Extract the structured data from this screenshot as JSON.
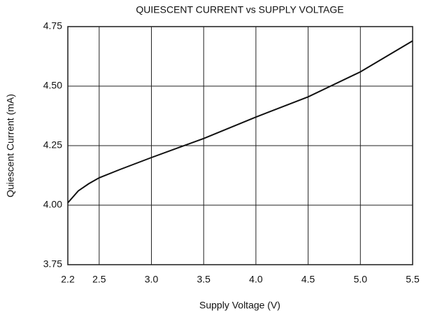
{
  "chart_data": {
    "type": "line",
    "title": "QUIESCENT CURRENT vs SUPPLY VOLTAGE",
    "x_label": "Supply Voltage (V)",
    "y_label": "Quiescent Current (mA)",
    "series": [
      {
        "name": "Quiescent Current",
        "color": "#111111",
        "x": [
          2.2,
          2.3,
          2.4,
          2.5,
          2.7,
          3.0,
          3.5,
          4.0,
          4.5,
          5.0,
          5.5
        ],
        "values": [
          4.01,
          4.06,
          4.09,
          4.115,
          4.15,
          4.2,
          4.28,
          4.37,
          4.455,
          4.56,
          4.69
        ]
      }
    ],
    "xlim": [
      2.2,
      5.5
    ],
    "xticks": [
      2.2,
      2.5,
      {
        "value": 3,
        "label": "3.0"
      },
      3.5,
      {
        "value": 4,
        "label": "4.0"
      },
      4.5,
      {
        "value": 5,
        "label": "5.0"
      },
      5.5
    ],
    "ylim": [
      3.75,
      4.75
    ],
    "yticks": [
      3.75,
      {
        "value": 4,
        "label": "4.00"
      },
      4.25,
      {
        "value": 4.5,
        "label": "4.50"
      },
      4.75
    ],
    "grid": true
  }
}
